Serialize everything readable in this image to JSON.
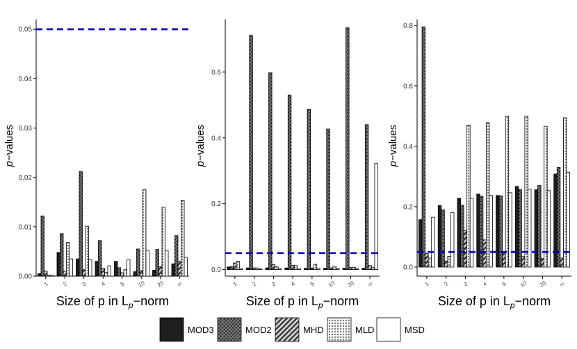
{
  "chart_data": [
    {
      "type": "bar",
      "title": "",
      "xlabel": "Size of p in L_p-norm",
      "ylabel": "p-values",
      "categories": [
        "1",
        "2",
        "3",
        "4",
        "5",
        "10",
        "20",
        "∞"
      ],
      "ylim": [
        0,
        0.052
      ],
      "yticks": [
        0.0,
        0.01,
        0.02,
        0.03,
        0.04,
        0.05
      ],
      "ytick_labels": [
        "0.00",
        "0.01",
        "0.02",
        "0.03",
        "0.04",
        "0.05"
      ],
      "reference_line": 0.05,
      "series": [
        {
          "name": "MOD3",
          "values": [
            0.0005,
            0.0048,
            0.0035,
            0.003,
            0.003,
            0.0009,
            0.0012,
            0.0025
          ]
        },
        {
          "name": "MOD2",
          "values": [
            0.0122,
            0.0086,
            0.0212,
            0.0072,
            0.0017,
            0.0055,
            0.0054,
            0.0082
          ]
        },
        {
          "name": "MHD",
          "values": [
            0.001,
            0.001,
            0.0013,
            0.0016,
            0.0007,
            0.0011,
            0.0019,
            0.003
          ]
        },
        {
          "name": "MLD",
          "values": [
            0.0002,
            0.0068,
            0.0101,
            0.0008,
            0.0013,
            0.0175,
            0.014,
            0.0154
          ]
        },
        {
          "name": "MSD",
          "values": [
            0.0002,
            0.0035,
            0.0034,
            0.0021,
            0.0033,
            0.0052,
            0.0052,
            0.0038
          ]
        }
      ]
    },
    {
      "type": "bar",
      "title": "",
      "xlabel": "Size of p in L_p-norm",
      "ylabel": "p-values",
      "categories": [
        "1",
        "2",
        "3",
        "4",
        "5",
        "10",
        "20",
        "∞"
      ],
      "ylim": [
        -0.02,
        0.76
      ],
      "yticks": [
        0.0,
        0.2,
        0.4,
        0.6
      ],
      "ytick_labels": [
        "0.0",
        "0.2",
        "0.4",
        "0.6"
      ],
      "reference_line": 0.05,
      "series": [
        {
          "name": "MOD3",
          "values": [
            0.008,
            0.005,
            0.005,
            0.005,
            0.004,
            0.004,
            0.004,
            0.004
          ]
        },
        {
          "name": "MOD2",
          "values": [
            0.009,
            0.712,
            0.598,
            0.53,
            0.487,
            0.427,
            0.735,
            0.44
          ]
        },
        {
          "name": "MHD",
          "values": [
            0.02,
            0.005,
            0.015,
            0.013,
            0.005,
            0.005,
            0.006,
            0.012
          ]
        },
        {
          "name": "MLD",
          "values": [
            0.025,
            0.005,
            0.009,
            0.012,
            0.016,
            0.01,
            0.007,
            0.006
          ]
        },
        {
          "name": "MSD",
          "values": [
            0.002,
            0.002,
            0.003,
            0.003,
            0.004,
            0.004,
            0.003,
            0.322
          ]
        }
      ]
    },
    {
      "type": "bar",
      "title": "",
      "xlabel": "Size of p in L_p-norm",
      "ylabel": "p-values",
      "categories": [
        "1",
        "2",
        "3",
        "4",
        "5",
        "10",
        "20",
        "∞"
      ],
      "ylim": [
        -0.03,
        0.82
      ],
      "yticks": [
        0.0,
        0.2,
        0.4,
        0.6,
        0.8
      ],
      "ytick_labels": [
        "0.0",
        "0.2",
        "0.4",
        "0.6",
        "0.8"
      ],
      "reference_line": 0.05,
      "series": [
        {
          "name": "MOD3",
          "values": [
            0.157,
            0.204,
            0.228,
            0.242,
            0.237,
            0.267,
            0.256,
            0.308
          ]
        },
        {
          "name": "MOD2",
          "values": [
            0.795,
            0.19,
            0.205,
            0.235,
            0.236,
            0.257,
            0.27,
            0.33
          ]
        },
        {
          "name": "MHD",
          "values": [
            0.045,
            0.02,
            0.121,
            0.09,
            0.048,
            0.035,
            0.028,
            0.03
          ]
        },
        {
          "name": "MLD",
          "values": [
            0.03,
            0.035,
            0.47,
            0.478,
            0.5,
            0.5,
            0.466,
            0.494
          ]
        },
        {
          "name": "MSD",
          "values": [
            0.165,
            0.18,
            0.228,
            0.237,
            0.246,
            0.258,
            0.253,
            0.314
          ]
        }
      ]
    }
  ],
  "legend": {
    "position": "bottom",
    "items": [
      {
        "name": "MOD3",
        "pattern": "solid-dark"
      },
      {
        "name": "MOD2",
        "pattern": "crosshatch"
      },
      {
        "name": "MHD",
        "pattern": "diagonal-stripes"
      },
      {
        "name": "MLD",
        "pattern": "dots"
      },
      {
        "name": "MSD",
        "pattern": "white"
      }
    ]
  },
  "colors": {
    "reference_line": "#0000cc",
    "mod3": "#1c1c1c",
    "mod2": "#3a3a3a",
    "mhd": "#555555",
    "mld": "#e8e8e8",
    "msd": "#ffffff",
    "axis": "#000000"
  }
}
